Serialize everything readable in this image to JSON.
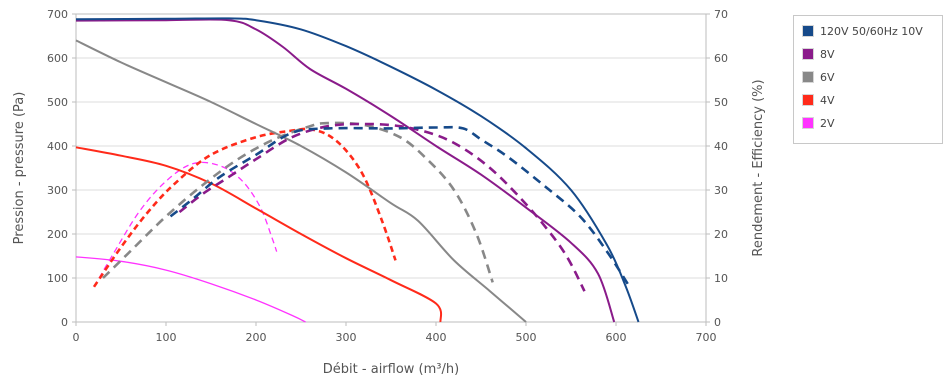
{
  "chart_data": {
    "type": "line",
    "xlabel": "Débit - airflow (m³/h)",
    "ylabel_left": "Pression - pressure (Pa)",
    "ylabel_right": "Rendement - Efficiency (%)",
    "xlim": [
      0,
      700
    ],
    "ylim_left": [
      0,
      700
    ],
    "ylim_right": [
      0,
      70
    ],
    "x_ticks": [
      "0",
      "100",
      "200",
      "300",
      "400",
      "500",
      "600",
      "700"
    ],
    "y_left_ticks": [
      "0",
      "100",
      "200",
      "300",
      "400",
      "500",
      "600",
      "700"
    ],
    "y_right_ticks": [
      "0",
      "10",
      "20",
      "30",
      "40",
      "50",
      "60",
      "70"
    ],
    "grid": "horizontal",
    "legend_position": "right",
    "series": [
      {
        "name": "120V 50/60Hz 10V",
        "color": "#164a8a",
        "pressure": [
          [
            0,
            688
          ],
          [
            100,
            689
          ],
          [
            170,
            690
          ],
          [
            200,
            686
          ],
          [
            250,
            665
          ],
          [
            300,
            627
          ],
          [
            350,
            580
          ],
          [
            400,
            528
          ],
          [
            450,
            468
          ],
          [
            500,
            395
          ],
          [
            550,
            300
          ],
          [
            590,
            175
          ],
          [
            610,
            85
          ],
          [
            625,
            0
          ]
        ],
        "efficiency": [
          [
            105,
            24
          ],
          [
            130,
            28
          ],
          [
            160,
            33
          ],
          [
            200,
            38
          ],
          [
            240,
            43
          ],
          [
            280,
            44
          ],
          [
            350,
            44
          ],
          [
            400,
            44.2
          ],
          [
            430,
            44
          ],
          [
            450,
            41.5
          ],
          [
            480,
            37.5
          ],
          [
            520,
            31
          ],
          [
            560,
            24
          ],
          [
            590,
            16
          ],
          [
            615,
            8
          ]
        ]
      },
      {
        "name": "8V",
        "color": "#8a1b8a",
        "pressure": [
          [
            0,
            685
          ],
          [
            100,
            686
          ],
          [
            170,
            686
          ],
          [
            200,
            665
          ],
          [
            230,
            625
          ],
          [
            260,
            575
          ],
          [
            300,
            530
          ],
          [
            350,
            468
          ],
          [
            400,
            400
          ],
          [
            450,
            335
          ],
          [
            500,
            260
          ],
          [
            550,
            180
          ],
          [
            580,
            110
          ],
          [
            598,
            0
          ]
        ],
        "efficiency": [
          [
            115,
            25
          ],
          [
            140,
            29
          ],
          [
            170,
            33
          ],
          [
            200,
            37
          ],
          [
            240,
            42
          ],
          [
            280,
            44.5
          ],
          [
            320,
            45
          ],
          [
            360,
            44.5
          ],
          [
            400,
            42.5
          ],
          [
            430,
            39.5
          ],
          [
            460,
            35
          ],
          [
            490,
            29
          ],
          [
            520,
            22
          ],
          [
            545,
            15
          ],
          [
            565,
            7
          ]
        ]
      },
      {
        "name": "6V",
        "color": "#888888",
        "pressure": [
          [
            0,
            640
          ],
          [
            50,
            590
          ],
          [
            100,
            545
          ],
          [
            150,
            500
          ],
          [
            200,
            450
          ],
          [
            250,
            400
          ],
          [
            300,
            340
          ],
          [
            350,
            270
          ],
          [
            380,
            230
          ],
          [
            420,
            140
          ],
          [
            460,
            70
          ],
          [
            500,
            0
          ]
        ],
        "efficiency": [
          [
            30,
            10
          ],
          [
            60,
            16
          ],
          [
            100,
            24
          ],
          [
            140,
            31
          ],
          [
            180,
            37
          ],
          [
            220,
            41.5
          ],
          [
            260,
            44.5
          ],
          [
            280,
            45.2
          ],
          [
            320,
            44.8
          ],
          [
            360,
            42
          ],
          [
            390,
            37
          ],
          [
            420,
            30
          ],
          [
            445,
            20
          ],
          [
            463,
            9
          ]
        ]
      },
      {
        "name": "4V",
        "color": "#ff2a1a",
        "pressure": [
          [
            0,
            397
          ],
          [
            50,
            378
          ],
          [
            100,
            355
          ],
          [
            150,
            315
          ],
          [
            200,
            258
          ],
          [
            250,
            200
          ],
          [
            300,
            145
          ],
          [
            350,
            95
          ],
          [
            400,
            42
          ],
          [
            405,
            0
          ]
        ],
        "efficiency": [
          [
            20,
            8
          ],
          [
            50,
            17
          ],
          [
            80,
            25
          ],
          [
            110,
            31.5
          ],
          [
            150,
            38
          ],
          [
            200,
            42
          ],
          [
            240,
            43.5
          ],
          [
            260,
            43.8
          ],
          [
            280,
            42.5
          ],
          [
            300,
            39
          ],
          [
            320,
            33
          ],
          [
            340,
            23
          ],
          [
            355,
            14
          ]
        ]
      },
      {
        "name": "2V",
        "color": "#ff33ff",
        "pressure": [
          [
            0,
            148
          ],
          [
            50,
            138
          ],
          [
            100,
            118
          ],
          [
            150,
            87
          ],
          [
            200,
            50
          ],
          [
            240,
            15
          ],
          [
            255,
            0
          ]
        ],
        "efficiency": [
          [
            20,
            8
          ],
          [
            40,
            15
          ],
          [
            70,
            25
          ],
          [
            100,
            32
          ],
          [
            130,
            36
          ],
          [
            160,
            35.5
          ],
          [
            185,
            32
          ],
          [
            205,
            26
          ],
          [
            218,
            19
          ],
          [
            223,
            16
          ]
        ]
      }
    ]
  }
}
